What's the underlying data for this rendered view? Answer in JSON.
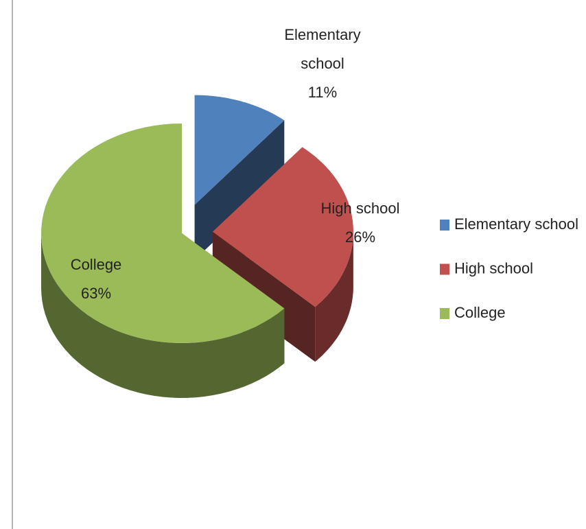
{
  "chart_data": {
    "type": "pie3d",
    "categories": [
      "Elementary school",
      "High school",
      "College"
    ],
    "values": [
      11,
      26,
      63
    ],
    "value_labels": [
      "11%",
      "26%",
      "63%"
    ],
    "colors": [
      "#4f81bd",
      "#c0504d",
      "#9bbb59"
    ],
    "legend": "right"
  }
}
